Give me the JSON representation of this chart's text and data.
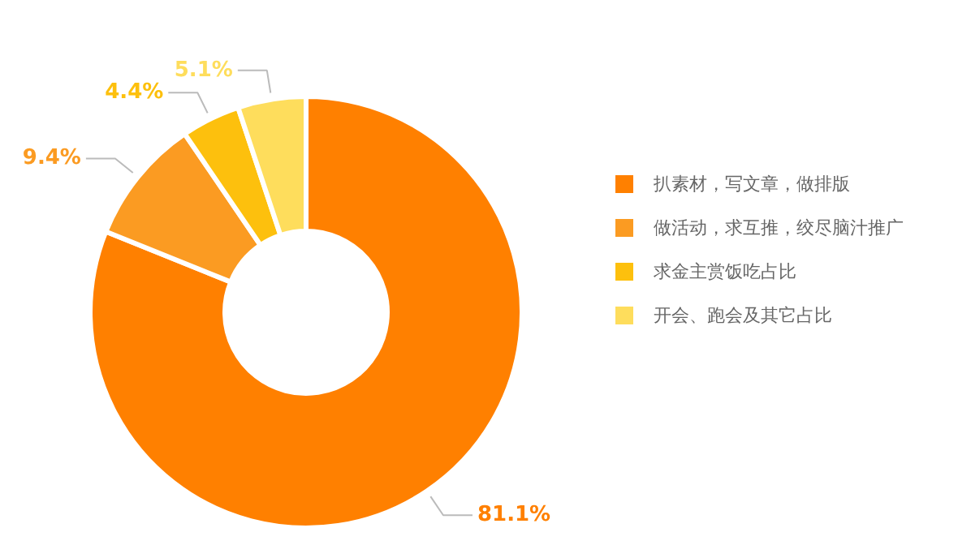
{
  "chart_data": {
    "type": "donut",
    "categories": [
      "扒素材，写文章，做排版",
      "做活动，求互推，绞尽脑汁推广",
      "求金主赏饭吃占比",
      "开会、跑会及其它占比"
    ],
    "values": [
      81.1,
      9.4,
      4.4,
      5.1
    ],
    "colors": [
      "#ff8000",
      "#fb9b22",
      "#fdc00d",
      "#fedd5c"
    ],
    "value_labels": [
      "81.1%",
      "9.4%",
      "4.4%",
      "5.1%"
    ],
    "legend": "right"
  }
}
